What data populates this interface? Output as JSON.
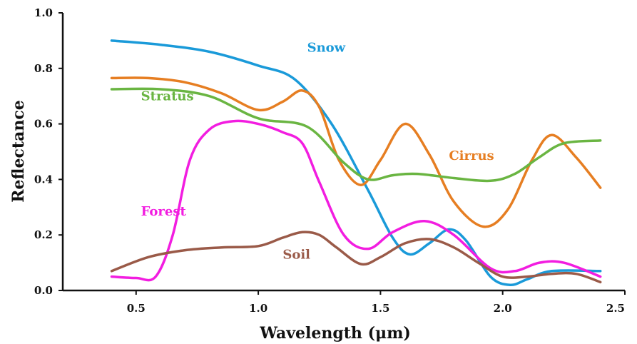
{
  "chart_data": {
    "type": "line",
    "title": "",
    "xlabel": "Wavelength (μm)",
    "ylabel": "Reflectance",
    "xlim": [
      0.2,
      2.5
    ],
    "ylim": [
      0.0,
      1.0
    ],
    "x_ticks": [
      {
        "value": 0.5,
        "label": "0.5"
      },
      {
        "value": 1.0,
        "label": "1.0"
      },
      {
        "value": 1.5,
        "label": "1.5"
      },
      {
        "value": 2.0,
        "label": "2.0"
      },
      {
        "value": 2.5,
        "label": "2.5"
      }
    ],
    "y_ticks": [
      {
        "value": 0.0,
        "label": "0.0"
      },
      {
        "value": 0.2,
        "label": "0.2"
      },
      {
        "value": 0.4,
        "label": "0.4"
      },
      {
        "value": 0.6,
        "label": "0.6"
      },
      {
        "value": 0.8,
        "label": "0.8"
      },
      {
        "value": 1.0,
        "label": "1.0"
      }
    ],
    "grid": false,
    "legend": "none",
    "series": [
      {
        "name": "Snow",
        "color": "#1a9ad9",
        "label_at": [
          1.2,
          0.86
        ],
        "x": [
          0.4,
          0.6,
          0.8,
          1.0,
          1.15,
          1.3,
          1.45,
          1.55,
          1.62,
          1.7,
          1.78,
          1.85,
          1.95,
          2.03,
          2.1,
          2.2,
          2.4
        ],
        "y": [
          0.9,
          0.885,
          0.86,
          0.81,
          0.76,
          0.6,
          0.36,
          0.19,
          0.13,
          0.17,
          0.22,
          0.18,
          0.05,
          0.02,
          0.04,
          0.07,
          0.07
        ]
      },
      {
        "name": "Cirrus",
        "color": "#e67e22",
        "label_at": [
          1.78,
          0.47
        ],
        "x": [
          0.4,
          0.55,
          0.7,
          0.85,
          1.0,
          1.1,
          1.18,
          1.25,
          1.33,
          1.42,
          1.5,
          1.6,
          1.7,
          1.8,
          1.92,
          2.02,
          2.12,
          2.2,
          2.3,
          2.4
        ],
        "y": [
          0.765,
          0.765,
          0.75,
          0.71,
          0.65,
          0.68,
          0.72,
          0.66,
          0.47,
          0.38,
          0.47,
          0.6,
          0.49,
          0.32,
          0.23,
          0.29,
          0.47,
          0.56,
          0.48,
          0.37
        ]
      },
      {
        "name": "Stratus",
        "color": "#6ab542",
        "label_at": [
          0.52,
          0.685
        ],
        "x": [
          0.4,
          0.6,
          0.8,
          1.0,
          1.2,
          1.35,
          1.45,
          1.55,
          1.65,
          1.8,
          1.95,
          2.05,
          2.15,
          2.25,
          2.4
        ],
        "y": [
          0.725,
          0.725,
          0.7,
          0.62,
          0.59,
          0.46,
          0.4,
          0.415,
          0.42,
          0.405,
          0.395,
          0.42,
          0.48,
          0.53,
          0.54
        ]
      },
      {
        "name": "Forest",
        "color": "#f21de0",
        "label_at": [
          0.52,
          0.27
        ],
        "x": [
          0.4,
          0.5,
          0.58,
          0.65,
          0.72,
          0.8,
          0.9,
          1.0,
          1.1,
          1.18,
          1.25,
          1.35,
          1.45,
          1.55,
          1.68,
          1.8,
          1.95,
          2.05,
          2.15,
          2.25,
          2.4
        ],
        "y": [
          0.05,
          0.045,
          0.05,
          0.2,
          0.47,
          0.58,
          0.61,
          0.6,
          0.57,
          0.53,
          0.39,
          0.2,
          0.15,
          0.21,
          0.25,
          0.2,
          0.08,
          0.07,
          0.1,
          0.1,
          0.05
        ]
      },
      {
        "name": "Soil",
        "color": "#9a5a48",
        "label_at": [
          1.1,
          0.115
        ],
        "x": [
          0.4,
          0.55,
          0.7,
          0.85,
          1.0,
          1.1,
          1.18,
          1.25,
          1.32,
          1.42,
          1.5,
          1.6,
          1.7,
          1.8,
          1.9,
          2.0,
          2.1,
          2.2,
          2.3,
          2.4
        ],
        "y": [
          0.07,
          0.12,
          0.145,
          0.155,
          0.16,
          0.19,
          0.21,
          0.2,
          0.155,
          0.095,
          0.12,
          0.17,
          0.185,
          0.155,
          0.1,
          0.05,
          0.05,
          0.06,
          0.06,
          0.03
        ]
      }
    ]
  }
}
